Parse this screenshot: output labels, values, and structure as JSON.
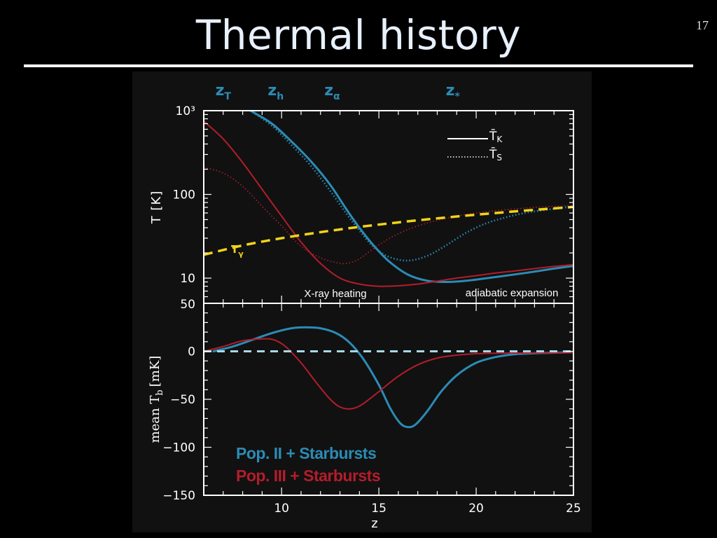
{
  "slide": {
    "title": "Thermal history",
    "number": "17"
  },
  "colors": {
    "pop2": "#2b8bb5",
    "pop3": "#b31d2b",
    "t_gamma": "#f2d318",
    "zero_line": "#a7d8e6",
    "axis": "#ffffff"
  },
  "chart_data": [
    {
      "type": "line",
      "panel": "top",
      "ylabel": "T [K]",
      "yscale": "log",
      "xlim": [
        6,
        25
      ],
      "ylim": [
        5,
        1000
      ],
      "yticks": [
        {
          "v": 1000,
          "label": "10³"
        },
        {
          "v": 100,
          "label": "100"
        },
        {
          "v": 10,
          "label": "10"
        }
      ],
      "top_markers": [
        {
          "label": "z",
          "sub": "T",
          "x": 7
        },
        {
          "label": "z",
          "sub": "h",
          "x": 9.7
        },
        {
          "label": "z",
          "sub": "α",
          "x": 12.6
        },
        {
          "label": "z",
          "sub": "*",
          "x": 18.8
        }
      ],
      "legend": {
        "placement": "top-right",
        "entries": [
          {
            "style": "solid",
            "label": "T̄",
            "sub": "K"
          },
          {
            "style": "dotted",
            "label": "T̄",
            "sub": "S"
          }
        ]
      },
      "annotations": [
        "X-ray heating",
        "adiabatic expansion",
        "T",
        "γ"
      ],
      "series": [
        {
          "key": "pop2_TK",
          "color": "pop2",
          "style": "solid",
          "x": [
            8.4,
            9.5,
            10.5,
            11.5,
            12.5,
            13.3,
            14,
            14.7,
            15.5,
            16.5,
            17.5,
            18.5,
            19.5,
            21,
            22.5,
            24,
            25
          ],
          "y": [
            1000,
            700,
            430,
            250,
            130,
            68,
            40,
            25,
            16,
            11,
            9.3,
            9,
            9.3,
            10.3,
            11.5,
            13,
            14
          ]
        },
        {
          "key": "pop2_TS",
          "color": "pop2",
          "style": "dotted",
          "x": [
            8.4,
            9.5,
            10.5,
            11.5,
            12.5,
            13.3,
            14,
            14.7,
            15.5,
            16.5,
            17.5,
            18.5,
            19.5,
            20.5,
            21.5,
            22.5,
            23.5,
            25
          ],
          "y": [
            1000,
            660,
            390,
            220,
            110,
            60,
            37,
            24,
            18,
            16.2,
            18.5,
            25,
            35,
            45,
            53,
            60,
            65,
            72
          ]
        },
        {
          "key": "pop3_TK",
          "color": "pop3",
          "style": "solid",
          "x": [
            6,
            7,
            8,
            9,
            10,
            11,
            12,
            13,
            14,
            15,
            16,
            17,
            18,
            19,
            20,
            21,
            22,
            23,
            24,
            25
          ],
          "y": [
            750,
            460,
            240,
            115,
            55,
            27,
            15,
            10,
            8.5,
            8,
            8.1,
            8.5,
            9.2,
            10,
            10.7,
            11.5,
            12.2,
            13,
            13.8,
            14.5
          ]
        },
        {
          "key": "pop3_TS",
          "color": "pop3",
          "style": "dotted",
          "x": [
            6,
            7,
            8,
            9,
            10,
            11,
            12,
            13,
            13.5,
            14,
            15,
            16,
            17,
            18,
            19,
            20,
            21,
            22,
            23,
            24,
            25
          ],
          "y": [
            210,
            180,
            125,
            72,
            42,
            24,
            17.5,
            15,
            15.3,
            17,
            25,
            34,
            42,
            49,
            55,
            60,
            64,
            67,
            70,
            72,
            74
          ]
        },
        {
          "key": "T_gamma",
          "color": "t_gamma",
          "style": "dashed",
          "x": [
            6,
            8,
            10,
            12,
            14,
            16,
            18,
            20,
            22,
            24,
            25
          ],
          "y": [
            19,
            24.6,
            30,
            35.4,
            40.9,
            46.3,
            51.8,
            57.2,
            62.7,
            68.1,
            70.8
          ]
        }
      ]
    },
    {
      "type": "line",
      "panel": "bottom",
      "xlabel": "z",
      "ylabel": "mean T",
      "ylabel_sub": "b",
      "ylabel_unit": "[mK]",
      "xlim": [
        6,
        25
      ],
      "ylim": [
        -150,
        50
      ],
      "xticks": [
        10,
        15,
        20,
        25
      ],
      "yticks": [
        {
          "v": 50,
          "label": "50"
        },
        {
          "v": 0,
          "label": "0"
        },
        {
          "v": -50,
          "label": "−50"
        },
        {
          "v": -100,
          "label": "−100"
        },
        {
          "v": -150,
          "label": "−150"
        }
      ],
      "legend": {
        "placement": "bottom-left",
        "entries": [
          {
            "color": "pop2",
            "label": "Pop. II + Starbursts"
          },
          {
            "color": "pop3",
            "label": "Pop. III + Starbursts"
          }
        ]
      },
      "series": [
        {
          "key": "pop2_Tb",
          "color": "pop2",
          "style": "solid",
          "x": [
            6.5,
            7.5,
            8.5,
            9.5,
            10.5,
            11.2,
            12,
            12.8,
            13.5,
            14.2,
            15,
            15.6,
            16.1,
            16.5,
            16.9,
            17.5,
            18.2,
            19,
            20,
            21,
            22,
            23,
            24,
            25
          ],
          "y": [
            0,
            5,
            12,
            19,
            24,
            25,
            24,
            19,
            9,
            -8,
            -35,
            -60,
            -75,
            -79,
            -76,
            -62,
            -42,
            -25,
            -12,
            -6,
            -3,
            -2,
            -1.5,
            -1
          ]
        },
        {
          "key": "pop3_Tb",
          "color": "pop3",
          "style": "solid",
          "x": [
            6,
            7,
            8,
            9,
            9.6,
            10.2,
            11,
            11.8,
            12.5,
            13,
            13.5,
            14,
            14.5,
            15,
            16,
            17,
            18,
            19,
            20,
            21,
            22,
            23,
            24,
            25
          ],
          "y": [
            0,
            5,
            11,
            13,
            12,
            5,
            -12,
            -33,
            -50,
            -58,
            -60,
            -57,
            -50,
            -42,
            -26,
            -14,
            -7,
            -4,
            -2.5,
            -2,
            -1.8,
            -1.7,
            -1.6,
            -1.5
          ]
        },
        {
          "key": "zero_line",
          "color": "zero_line",
          "style": "dashed",
          "x": [
            6,
            25
          ],
          "y": [
            0,
            0
          ]
        }
      ]
    }
  ]
}
